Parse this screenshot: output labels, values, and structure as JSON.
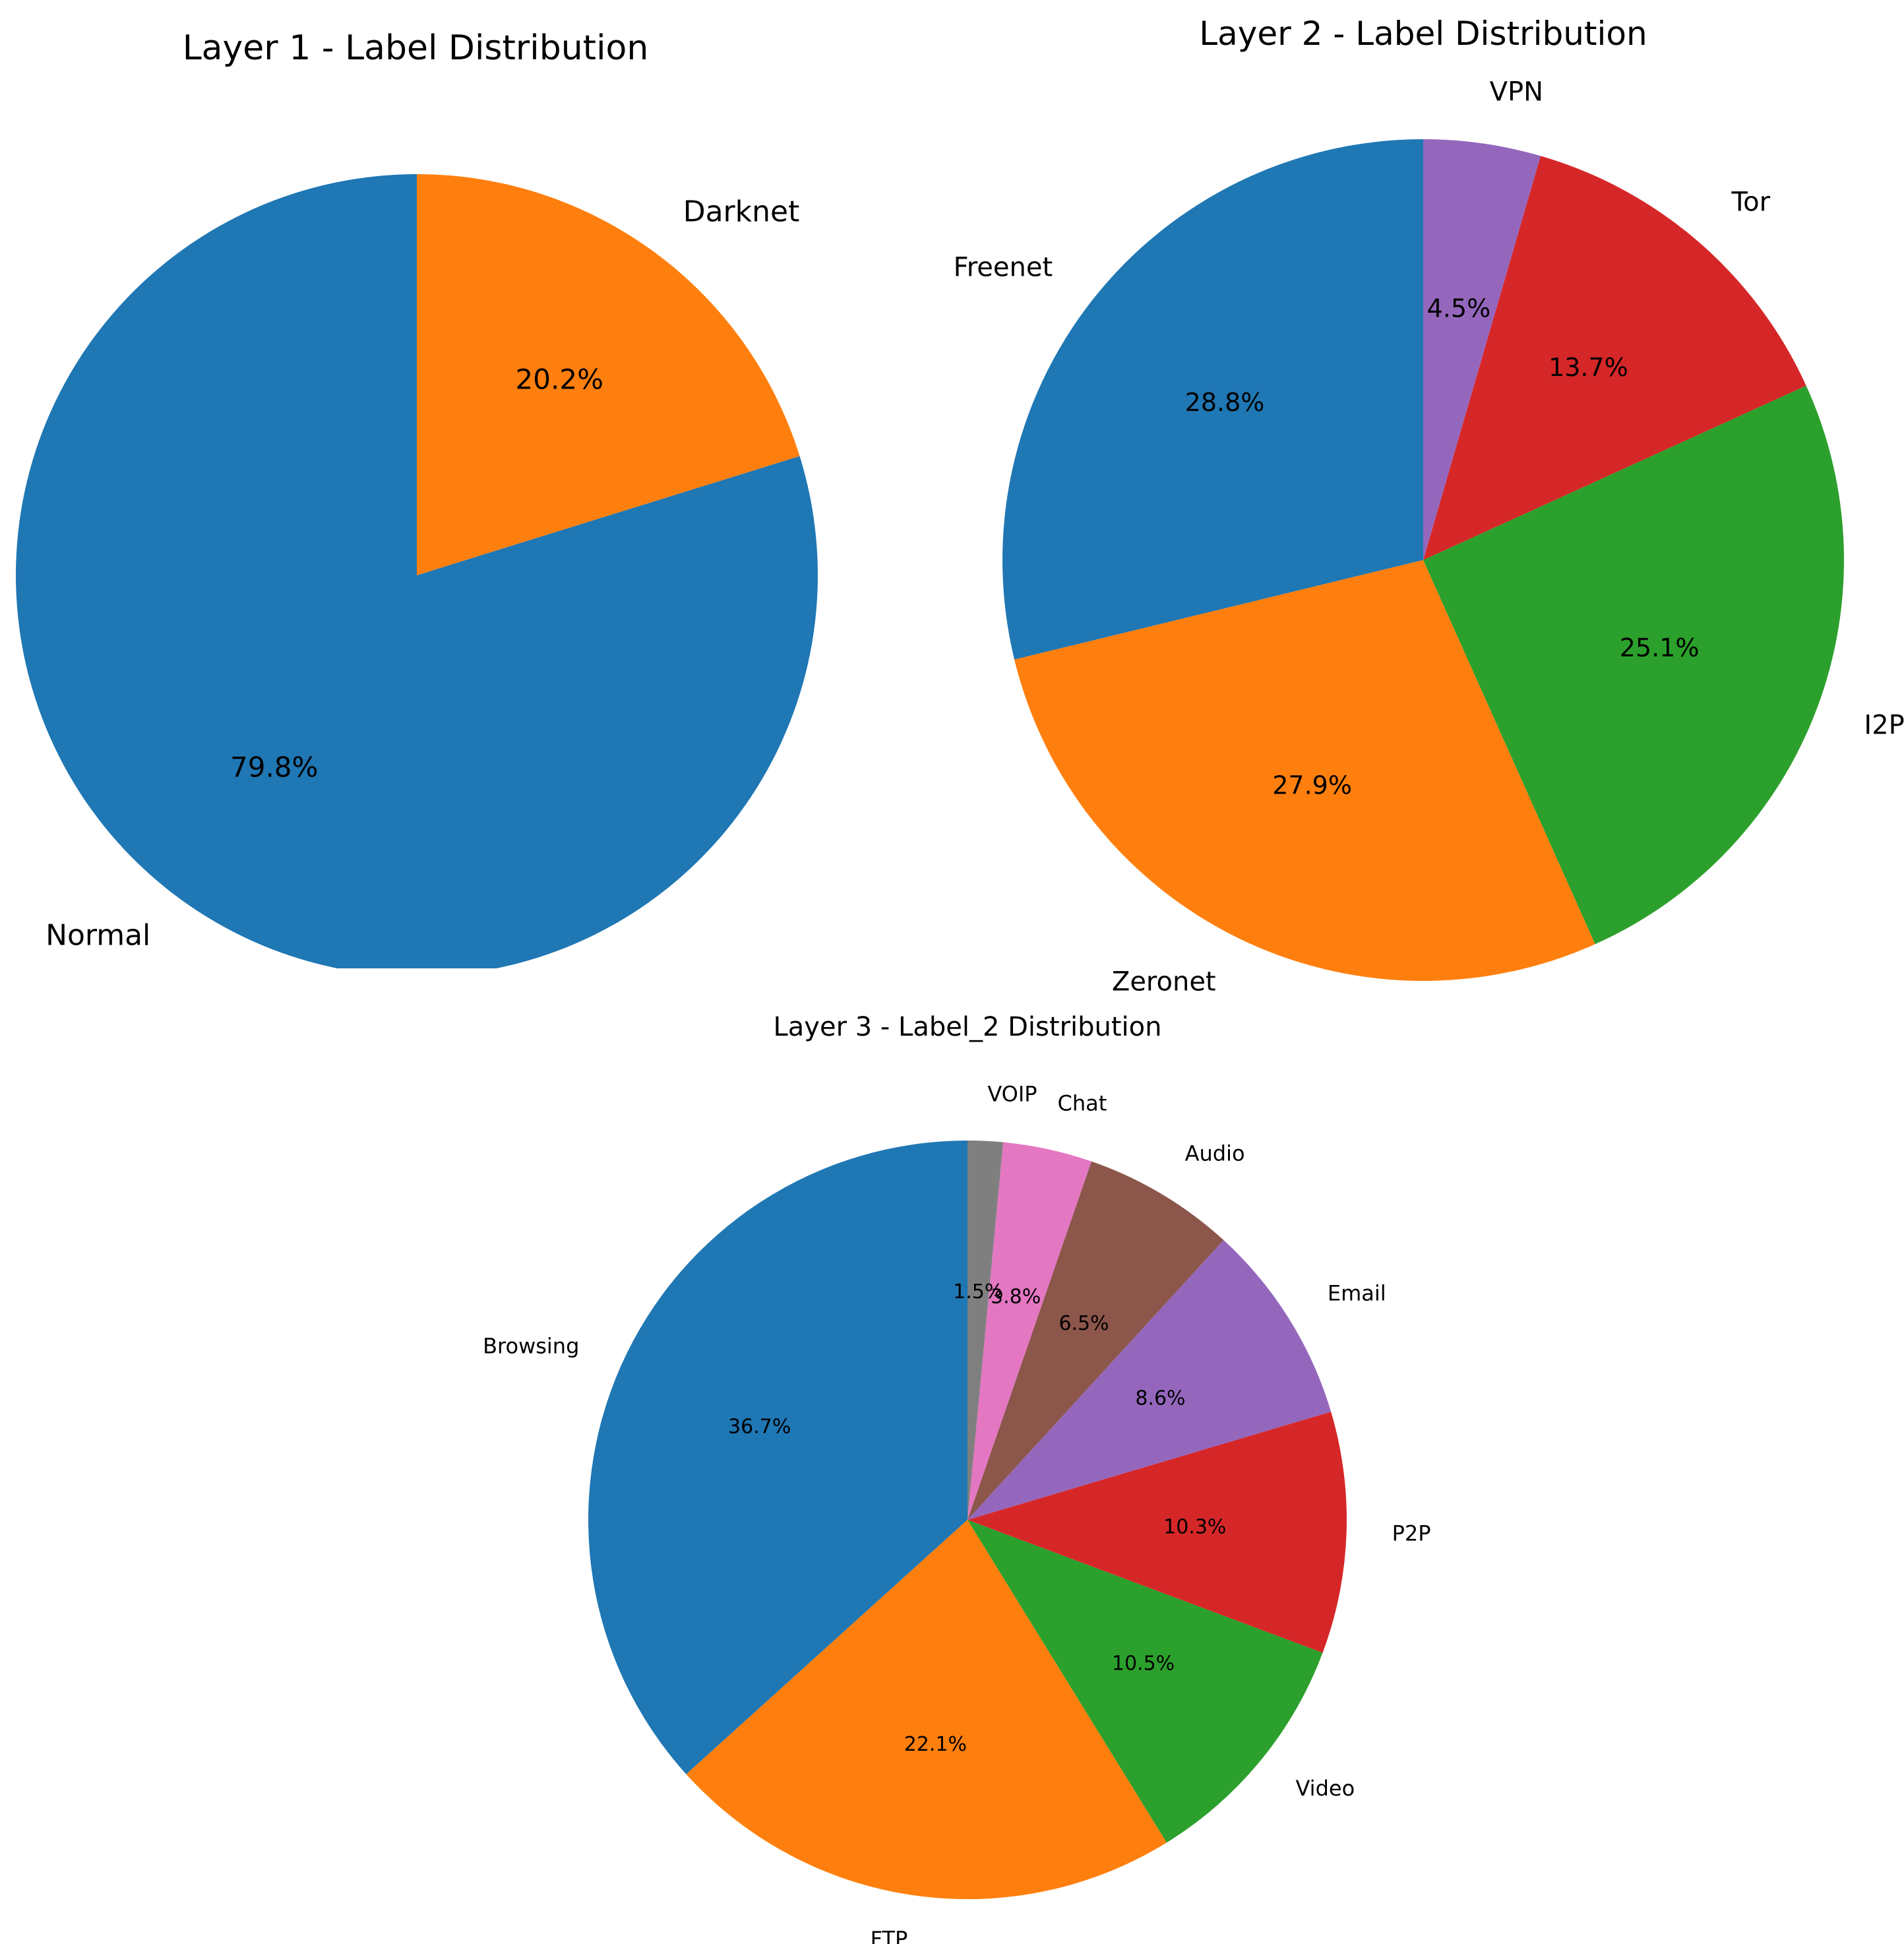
{
  "chart_data": [
    {
      "type": "pie",
      "title": "Layer 1 - Label Distribution",
      "start": "top, counterclockwise",
      "slices": [
        {
          "label": "Normal",
          "value": 79.8,
          "pct_label": "79.8%",
          "color": "#1f77b4"
        },
        {
          "label": "Darknet",
          "value": 20.2,
          "pct_label": "20.2%",
          "color": "#ff7f0e"
        }
      ]
    },
    {
      "type": "pie",
      "title": "Layer 2 - Label Distribution",
      "start": "top, counterclockwise",
      "slices": [
        {
          "label": "Freenet",
          "value": 28.8,
          "pct_label": "28.8%",
          "color": "#1f77b4"
        },
        {
          "label": "Zeronet",
          "value": 27.9,
          "pct_label": "27.9%",
          "color": "#ff7f0e"
        },
        {
          "label": "I2P",
          "value": 25.1,
          "pct_label": "25.1%",
          "color": "#2ca02c"
        },
        {
          "label": "Tor",
          "value": 13.7,
          "pct_label": "13.7%",
          "color": "#d62728"
        },
        {
          "label": "VPN",
          "value": 4.5,
          "pct_label": "4.5%",
          "color": "#9467bd"
        }
      ]
    },
    {
      "type": "pie",
      "title": "Layer 3 - Label_2 Distribution",
      "start": "top, counterclockwise",
      "slices": [
        {
          "label": "Browsing",
          "value": 36.7,
          "pct_label": "36.7%",
          "color": "#1f77b4"
        },
        {
          "label": "FTP",
          "value": 22.1,
          "pct_label": "22.1%",
          "color": "#ff7f0e"
        },
        {
          "label": "Video",
          "value": 10.5,
          "pct_label": "10.5%",
          "color": "#2ca02c"
        },
        {
          "label": "P2P",
          "value": 10.3,
          "pct_label": "10.3%",
          "color": "#d62728"
        },
        {
          "label": "Email",
          "value": 8.6,
          "pct_label": "8.6%",
          "color": "#9467bd"
        },
        {
          "label": "Audio",
          "value": 6.5,
          "pct_label": "6.5%",
          "color": "#8c564b"
        },
        {
          "label": "Chat",
          "value": 3.8,
          "pct_label": "3.8%",
          "color": "#e377c2"
        },
        {
          "label": "VOIP",
          "value": 1.5,
          "pct_label": "1.5%",
          "color": "#7f7f7f"
        }
      ]
    }
  ]
}
